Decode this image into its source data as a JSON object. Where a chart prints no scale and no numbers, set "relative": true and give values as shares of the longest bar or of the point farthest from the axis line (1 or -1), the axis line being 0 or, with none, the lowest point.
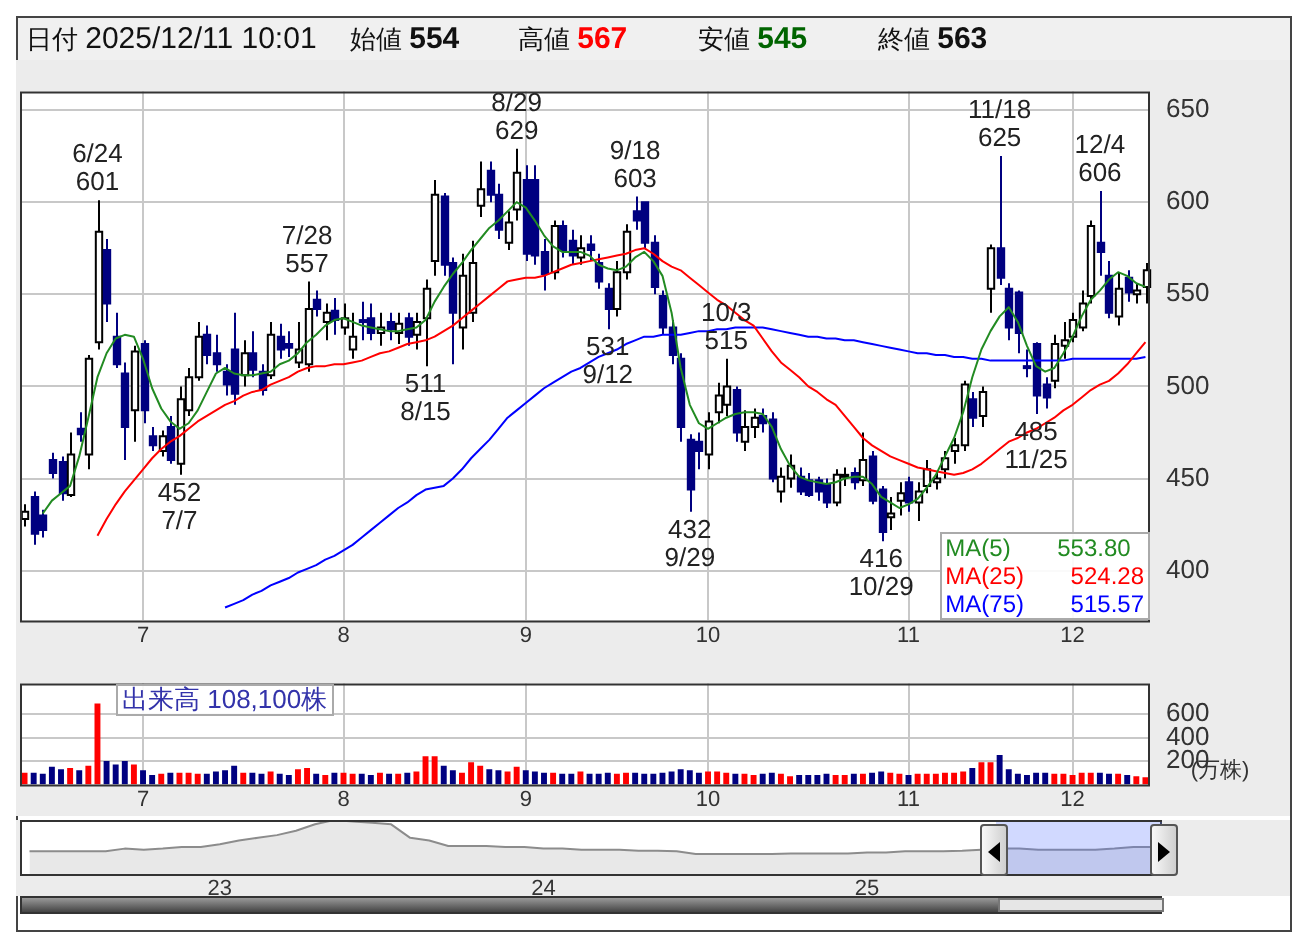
{
  "chart_data": [
    {
      "type": "candlestick",
      "annotations": [
        "日付 2025/12/11 10:01",
        "始値 554",
        "高値 567",
        "安値 545",
        "終値 563",
        {
          "text": "6/24\n601",
          "y": 601
        },
        {
          "text": "452\n7/7",
          "y": 452
        },
        {
          "text": "7/28\n557",
          "y": 557
        },
        {
          "text": "511\n8/15",
          "y": 511
        },
        {
          "text": "8/29\n629",
          "y": 629
        },
        {
          "text": "531\n9/12",
          "y": 531
        },
        {
          "text": "9/18\n603",
          "y": 603
        },
        {
          "text": "432\n9/29",
          "y": 432
        },
        {
          "text": "10/3\n515",
          "y": 515
        },
        {
          "text": "416\n10/29",
          "y": 416
        },
        {
          "text": "11/18\n625",
          "y": 625
        },
        {
          "text": "485\n11/25",
          "y": 485
        },
        {
          "text": "12/4\n606",
          "y": 606
        }
      ],
      "categories": [
        null,
        null,
        null,
        null,
        null,
        null,
        null,
        null,
        null,
        null,
        null,
        null,
        null,
        "7",
        null,
        null,
        null,
        null,
        null,
        null,
        null,
        null,
        null,
        null,
        null,
        null,
        null,
        null,
        null,
        null,
        null,
        null,
        null,
        null,
        null,
        "8",
        null,
        null,
        null,
        null,
        null,
        null,
        null,
        null,
        null,
        null,
        null,
        null,
        null,
        null,
        null,
        null,
        null,
        null,
        null,
        "9",
        null,
        null,
        null,
        null,
        null,
        null,
        null,
        null,
        null,
        null,
        null,
        null,
        null,
        null,
        null,
        null,
        null,
        null,
        null,
        "10",
        null,
        null,
        null,
        null,
        null,
        null,
        null,
        null,
        null,
        null,
        null,
        null,
        null,
        null,
        null,
        null,
        null,
        null,
        null,
        null,
        null,
        "11",
        null,
        null,
        null,
        null,
        null,
        null,
        null,
        null,
        null,
        null,
        null,
        null,
        null,
        null,
        null,
        null,
        null,
        "12",
        null,
        null,
        null,
        null,
        null,
        null,
        null,
        null
      ],
      "ohlc": [
        [
          428,
          436,
          424,
          432
        ],
        [
          440,
          443,
          414,
          420
        ],
        [
          430,
          433,
          418,
          422
        ],
        [
          460,
          464,
          450,
          453
        ],
        [
          459,
          462,
          438,
          442
        ],
        [
          441,
          475,
          440,
          463
        ],
        [
          477,
          486,
          470,
          474
        ],
        [
          463,
          517,
          455,
          515
        ],
        [
          524,
          601,
          520,
          584
        ],
        [
          574,
          580,
          535,
          545
        ],
        [
          527,
          540,
          510,
          512
        ],
        [
          507,
          513,
          460,
          478
        ],
        [
          487,
          522,
          470,
          519
        ],
        [
          523,
          525,
          480,
          487
        ],
        [
          473,
          478,
          465,
          468
        ],
        [
          465,
          476,
          462,
          473
        ],
        [
          478,
          484,
          458,
          460
        ],
        [
          458,
          500,
          452,
          493
        ],
        [
          487,
          510,
          484,
          505
        ],
        [
          505,
          535,
          503,
          527
        ],
        [
          528,
          533,
          512,
          517
        ],
        [
          518,
          528,
          508,
          512
        ],
        [
          508,
          512,
          495,
          501
        ],
        [
          520,
          540,
          490,
          496
        ],
        [
          506,
          525,
          500,
          518
        ],
        [
          518,
          530,
          505,
          509
        ],
        [
          508,
          512,
          495,
          498
        ],
        [
          506,
          535,
          504,
          528
        ],
        [
          527,
          534,
          515,
          520
        ],
        [
          523,
          530,
          516,
          521
        ],
        [
          513,
          535,
          510,
          520
        ],
        [
          512,
          557,
          508,
          542
        ],
        [
          547,
          552,
          538,
          542
        ],
        [
          535,
          545,
          525,
          540
        ],
        [
          541,
          548,
          528,
          536
        ],
        [
          532,
          545,
          528,
          537
        ],
        [
          520,
          540,
          515,
          527
        ],
        [
          536,
          546,
          525,
          535
        ],
        [
          537,
          545,
          525,
          529
        ],
        [
          529,
          540,
          522,
          532
        ],
        [
          535,
          540,
          525,
          531
        ],
        [
          529,
          540,
          523,
          534
        ],
        [
          537,
          540,
          522,
          527
        ],
        [
          528,
          540,
          520,
          535
        ],
        [
          537,
          558,
          511,
          553
        ],
        [
          568,
          612,
          560,
          604
        ],
        [
          603,
          605,
          560,
          566
        ],
        [
          567,
          570,
          512,
          540
        ],
        [
          532,
          572,
          520,
          560
        ],
        [
          540,
          579,
          535,
          567
        ],
        [
          598,
          622,
          592,
          607
        ],
        [
          617,
          622,
          600,
          604
        ],
        [
          604,
          610,
          580,
          585
        ],
        [
          578,
          595,
          574,
          589
        ],
        [
          596,
          629,
          590,
          616
        ],
        [
          612,
          620,
          568,
          572
        ],
        [
          612,
          620,
          566,
          571
        ],
        [
          573,
          580,
          552,
          561
        ],
        [
          562,
          590,
          558,
          587
        ],
        [
          587,
          590,
          570,
          574
        ],
        [
          579,
          585,
          566,
          571
        ],
        [
          570,
          582,
          566,
          575
        ],
        [
          577,
          582,
          568,
          574
        ],
        [
          567,
          572,
          553,
          557
        ],
        [
          553,
          556,
          531,
          542
        ],
        [
          542,
          568,
          538,
          562
        ],
        [
          562,
          588,
          558,
          584
        ],
        [
          595,
          603,
          585,
          590
        ],
        [
          600,
          600,
          575,
          578
        ],
        [
          578,
          582,
          550,
          554
        ],
        [
          549,
          552,
          528,
          532
        ],
        [
          532,
          536,
          512,
          517
        ],
        [
          515,
          518,
          470,
          478
        ],
        [
          471,
          474,
          432,
          444
        ],
        [
          470,
          475,
          455,
          465
        ],
        [
          463,
          486,
          455,
          481
        ],
        [
          486,
          502,
          480,
          495
        ],
        [
          490,
          515,
          484,
          500
        ],
        [
          498,
          500,
          470,
          475
        ],
        [
          470,
          487,
          465,
          478
        ],
        [
          478,
          488,
          472,
          483
        ],
        [
          484,
          488,
          475,
          480
        ],
        [
          482,
          486,
          448,
          450
        ],
        [
          443,
          456,
          437,
          451
        ],
        [
          450,
          463,
          445,
          457
        ],
        [
          451,
          456,
          441,
          443
        ],
        [
          449,
          453,
          440,
          441
        ],
        [
          449,
          451,
          438,
          443
        ],
        [
          447,
          450,
          434,
          437
        ],
        [
          437,
          455,
          435,
          452
        ],
        [
          451,
          456,
          446,
          452
        ],
        [
          453,
          456,
          444,
          448
        ],
        [
          449,
          475,
          446,
          460
        ],
        [
          462,
          465,
          436,
          438
        ],
        [
          444,
          446,
          416,
          421
        ],
        [
          429,
          440,
          422,
          431
        ],
        [
          438,
          448,
          430,
          442
        ],
        [
          448,
          451,
          432,
          437
        ],
        [
          437,
          448,
          427,
          443
        ],
        [
          446,
          460,
          442,
          455
        ],
        [
          448,
          453,
          444,
          450
        ],
        [
          455,
          465,
          450,
          461
        ],
        [
          465,
          472,
          458,
          468
        ],
        [
          468,
          503,
          465,
          501
        ],
        [
          493,
          497,
          478,
          483
        ],
        [
          484,
          500,
          478,
          497
        ],
        [
          553,
          577,
          540,
          575
        ],
        [
          575,
          625,
          555,
          559
        ],
        [
          553,
          556,
          525,
          532
        ],
        [
          551,
          552,
          518,
          529
        ],
        [
          511,
          520,
          505,
          510
        ],
        [
          523,
          524,
          485,
          495
        ],
        [
          501,
          505,
          488,
          494
        ],
        [
          503,
          528,
          499,
          523
        ],
        [
          522,
          535,
          515,
          525
        ],
        [
          527,
          540,
          524,
          536
        ],
        [
          532,
          552,
          530,
          545
        ],
        [
          549,
          590,
          545,
          587
        ],
        [
          578,
          606,
          560,
          573
        ],
        [
          560,
          568,
          537,
          540
        ],
        [
          538,
          562,
          533,
          553
        ],
        [
          559,
          563,
          546,
          551
        ],
        [
          550,
          556,
          545,
          552
        ],
        [
          554,
          567,
          545,
          563
        ]
      ],
      "series": [
        {
          "name": "MA(5) 553.80",
          "type": "line",
          "color": "#228b22",
          "values": [
            null,
            null,
            431,
            438,
            442,
            446,
            462,
            483,
            505,
            518,
            526,
            528,
            527,
            515,
            499,
            488,
            481,
            477,
            480,
            487,
            497,
            507,
            510,
            507,
            506,
            506,
            507,
            508,
            512,
            514,
            518,
            524,
            528,
            533,
            536,
            537,
            535,
            533,
            532,
            531,
            530,
            530,
            531,
            532,
            536,
            546,
            554,
            561,
            567,
            574,
            580,
            586,
            590,
            595,
            600,
            597,
            590,
            582,
            576,
            573,
            573,
            573,
            571,
            566,
            564,
            563,
            565,
            570,
            573,
            568,
            560,
            540,
            510,
            490,
            480,
            477,
            480,
            483,
            485,
            486,
            486,
            485,
            478,
            466,
            457,
            451,
            449,
            448,
            447,
            448,
            450,
            451,
            451,
            447,
            440,
            437,
            434,
            436,
            439,
            445,
            452,
            462,
            472,
            486,
            505,
            520,
            530,
            538,
            543,
            535,
            522,
            511,
            508,
            510,
            518,
            527,
            538,
            547,
            552,
            558,
            562,
            560,
            556,
            554
          ]
        },
        {
          "name": "MA(25) 524.28",
          "type": "line",
          "color": "#ff0000",
          "values": [
            null,
            null,
            null,
            null,
            null,
            null,
            null,
            null,
            419,
            428,
            436,
            443,
            449,
            455,
            461,
            466,
            470,
            473,
            477,
            481,
            484,
            487,
            490,
            492,
            495,
            497,
            498,
            501,
            503,
            505,
            508,
            510,
            511,
            511,
            512,
            512,
            513,
            514,
            516,
            518,
            519,
            521,
            523,
            524,
            525,
            527,
            530,
            533,
            537,
            541,
            545,
            549,
            553,
            557,
            558,
            559,
            559,
            560,
            562,
            564,
            566,
            567,
            568,
            569,
            570,
            571,
            572,
            574,
            575,
            572,
            568,
            565,
            563,
            559,
            555,
            551,
            547,
            544,
            540,
            536,
            533,
            526,
            519,
            513,
            509,
            505,
            500,
            497,
            493,
            490,
            484,
            478,
            472,
            468,
            465,
            462,
            460,
            458,
            456,
            455,
            454,
            453,
            452,
            453,
            455,
            458,
            462,
            466,
            470,
            472,
            475,
            477,
            480,
            483,
            487,
            490,
            494,
            498,
            501,
            503,
            507,
            512,
            518,
            524
          ]
        },
        {
          "name": "MA(75) 515.57",
          "type": "line",
          "color": "#0000ff",
          "values": [
            null,
            null,
            null,
            null,
            null,
            null,
            null,
            null,
            null,
            null,
            null,
            null,
            null,
            null,
            null,
            null,
            null,
            null,
            null,
            null,
            null,
            null,
            380,
            382,
            384,
            387,
            389,
            392,
            394,
            396,
            399,
            401,
            403,
            406,
            408,
            411,
            414,
            418,
            422,
            426,
            430,
            434,
            437,
            441,
            444,
            445,
            446,
            450,
            455,
            461,
            466,
            471,
            477,
            483,
            487,
            491,
            495,
            499,
            502,
            505,
            508,
            510,
            513,
            516,
            518,
            520,
            523,
            525,
            527,
            527,
            528,
            528,
            528,
            529,
            530,
            530,
            531,
            531,
            532,
            532,
            532,
            532,
            531,
            530,
            529,
            528,
            527,
            527,
            526,
            526,
            525,
            525,
            524,
            523,
            522,
            521,
            520,
            519,
            518,
            518,
            517,
            517,
            516,
            516,
            515,
            515,
            514,
            514,
            514,
            514,
            514,
            514,
            514,
            514,
            514,
            515,
            515,
            515,
            515,
            515,
            515,
            515,
            515,
            516
          ]
        }
      ],
      "ylim": [
        373,
        660
      ],
      "yticks": [
        400,
        450,
        500,
        550,
        600,
        650
      ],
      "grid": true
    },
    {
      "type": "bar",
      "annotations": [
        "出来高 108,100株"
      ],
      "ylabel": "(万株)",
      "categories": [
        null,
        null,
        null,
        null,
        null,
        null,
        null,
        null,
        null,
        null,
        null,
        null,
        null,
        "7",
        null,
        null,
        null,
        null,
        null,
        null,
        null,
        null,
        null,
        null,
        null,
        null,
        null,
        null,
        null,
        null,
        null,
        null,
        null,
        null,
        null,
        "8",
        null,
        null,
        null,
        null,
        null,
        null,
        null,
        null,
        null,
        null,
        null,
        null,
        null,
        null,
        null,
        null,
        null,
        null,
        null,
        "9",
        null,
        null,
        null,
        null,
        null,
        null,
        null,
        null,
        null,
        null,
        null,
        null,
        null,
        null,
        null,
        null,
        null,
        null,
        null,
        "10",
        null,
        null,
        null,
        null,
        null,
        null,
        null,
        null,
        null,
        null,
        null,
        null,
        null,
        null,
        null,
        null,
        null,
        null,
        null,
        null,
        null,
        "11",
        null,
        null,
        null,
        null,
        null,
        null,
        null,
        null,
        null,
        null,
        null,
        null,
        null,
        null,
        null,
        null,
        null,
        "12",
        null,
        null,
        null,
        null,
        null,
        null,
        null,
        null
      ],
      "values": [
        100,
        100,
        90,
        150,
        130,
        140,
        120,
        160,
        690,
        200,
        170,
        200,
        170,
        120,
        80,
        90,
        100,
        100,
        100,
        90,
        90,
        110,
        120,
        160,
        100,
        100,
        90,
        110,
        90,
        80,
        130,
        140,
        90,
        80,
        100,
        100,
        90,
        90,
        80,
        100,
        90,
        90,
        100,
        110,
        240,
        240,
        160,
        120,
        100,
        190,
        160,
        130,
        120,
        110,
        150,
        120,
        110,
        100,
        100,
        90,
        90,
        110,
        90,
        90,
        100,
        90,
        100,
        100,
        90,
        90,
        100,
        110,
        130,
        120,
        100,
        110,
        110,
        100,
        90,
        90,
        80,
        90,
        100,
        90,
        70,
        80,
        80,
        80,
        90,
        80,
        80,
        90,
        90,
        100,
        110,
        100,
        90,
        80,
        90,
        90,
        90,
        100,
        100,
        110,
        140,
        190,
        190,
        250,
        130,
        90,
        80,
        100,
        100,
        90,
        90,
        80,
        100,
        100,
        100,
        90,
        90,
        80,
        70,
        60
      ],
      "colors": [
        "#ff0000",
        "#000080",
        "#000080",
        "#000080",
        "#000080",
        "#ff0000",
        "#000080",
        "#ff0000",
        "#ff0000",
        "#000080",
        "#000080",
        "#000080",
        "#ff0000",
        "#000080",
        "#000080",
        "#ff0000",
        "#000080",
        "#ff0000",
        "#ff0000",
        "#ff0000",
        "#000080",
        "#000080",
        "#000080",
        "#000080",
        "#ff0000",
        "#000080",
        "#000080",
        "#ff0000",
        "#000080",
        "#000080",
        "#ff0000",
        "#ff0000",
        "#000080",
        "#ff0000",
        "#000080",
        "#ff0000",
        "#ff0000",
        "#000080",
        "#000080",
        "#ff0000",
        "#000080",
        "#ff0000",
        "#000080",
        "#ff0000",
        "#ff0000",
        "#ff0000",
        "#000080",
        "#000080",
        "#ff0000",
        "#ff0000",
        "#ff0000",
        "#000080",
        "#000080",
        "#ff0000",
        "#ff0000",
        "#000080",
        "#000080",
        "#000080",
        "#ff0000",
        "#000080",
        "#000080",
        "#ff0000",
        "#000080",
        "#000080",
        "#000080",
        "#ff0000",
        "#ff0000",
        "#000080",
        "#000080",
        "#000080",
        "#000080",
        "#000080",
        "#000080",
        "#000080",
        "#000080",
        "#ff0000",
        "#ff0000",
        "#ff0000",
        "#000080",
        "#ff0000",
        "#ff0000",
        "#000080",
        "#000080",
        "#ff0000",
        "#ff0000",
        "#000080",
        "#000080",
        "#000080",
        "#000080",
        "#ff0000",
        "#ff0000",
        "#000080",
        "#ff0000",
        "#000080",
        "#000080",
        "#ff0000",
        "#ff0000",
        "#000080",
        "#ff0000",
        "#ff0000",
        "#ff0000",
        "#ff0000",
        "#ff0000",
        "#ff0000",
        "#000080",
        "#ff0000",
        "#ff0000",
        "#000080",
        "#000080",
        "#000080",
        "#000080",
        "#000080",
        "#000080",
        "#ff0000",
        "#ff0000",
        "#ff0000",
        "#ff0000",
        "#ff0000",
        "#000080",
        "#000080",
        "#ff0000",
        "#000080",
        "#ff0000",
        "#ff0000"
      ],
      "ylim": [
        0,
        860
      ],
      "yticks": [
        200,
        400,
        600
      ],
      "grid": true
    },
    {
      "type": "area",
      "relative": true,
      "color": "#8c8c8c",
      "categories": [
        null,
        null,
        null,
        null,
        null,
        null,
        null,
        null,
        null,
        null,
        "23",
        null,
        null,
        null,
        null,
        null,
        null,
        null,
        null,
        null,
        null,
        null,
        null,
        null,
        null,
        null,
        null,
        "24",
        null,
        null,
        null,
        null,
        null,
        null,
        null,
        null,
        null,
        null,
        null,
        null,
        null,
        null,
        null,
        null,
        "25",
        null,
        null,
        null,
        null,
        null,
        null,
        null,
        null,
        null,
        null,
        null,
        null,
        null,
        null,
        null
      ],
      "values": [
        0.42,
        0.42,
        0.42,
        0.42,
        0.42,
        0.47,
        0.45,
        0.47,
        0.5,
        0.5,
        0.55,
        0.62,
        0.67,
        0.72,
        0.8,
        0.92,
        1,
        0.97,
        0.95,
        0.92,
        0.67,
        0.62,
        0.52,
        0.52,
        0.52,
        0.5,
        0.5,
        0.47,
        0.47,
        0.45,
        0.45,
        0.45,
        0.43,
        0.43,
        0.42,
        0.37,
        0.37,
        0.37,
        0.37,
        0.37,
        0.38,
        0.38,
        0.38,
        0.38,
        0.4,
        0.4,
        0.42,
        0.42,
        0.42,
        0.43,
        0.45,
        0.47,
        0.47,
        0.45,
        0.45,
        0.45,
        0.45,
        0.47,
        0.5,
        0.5
      ]
    }
  ]
}
